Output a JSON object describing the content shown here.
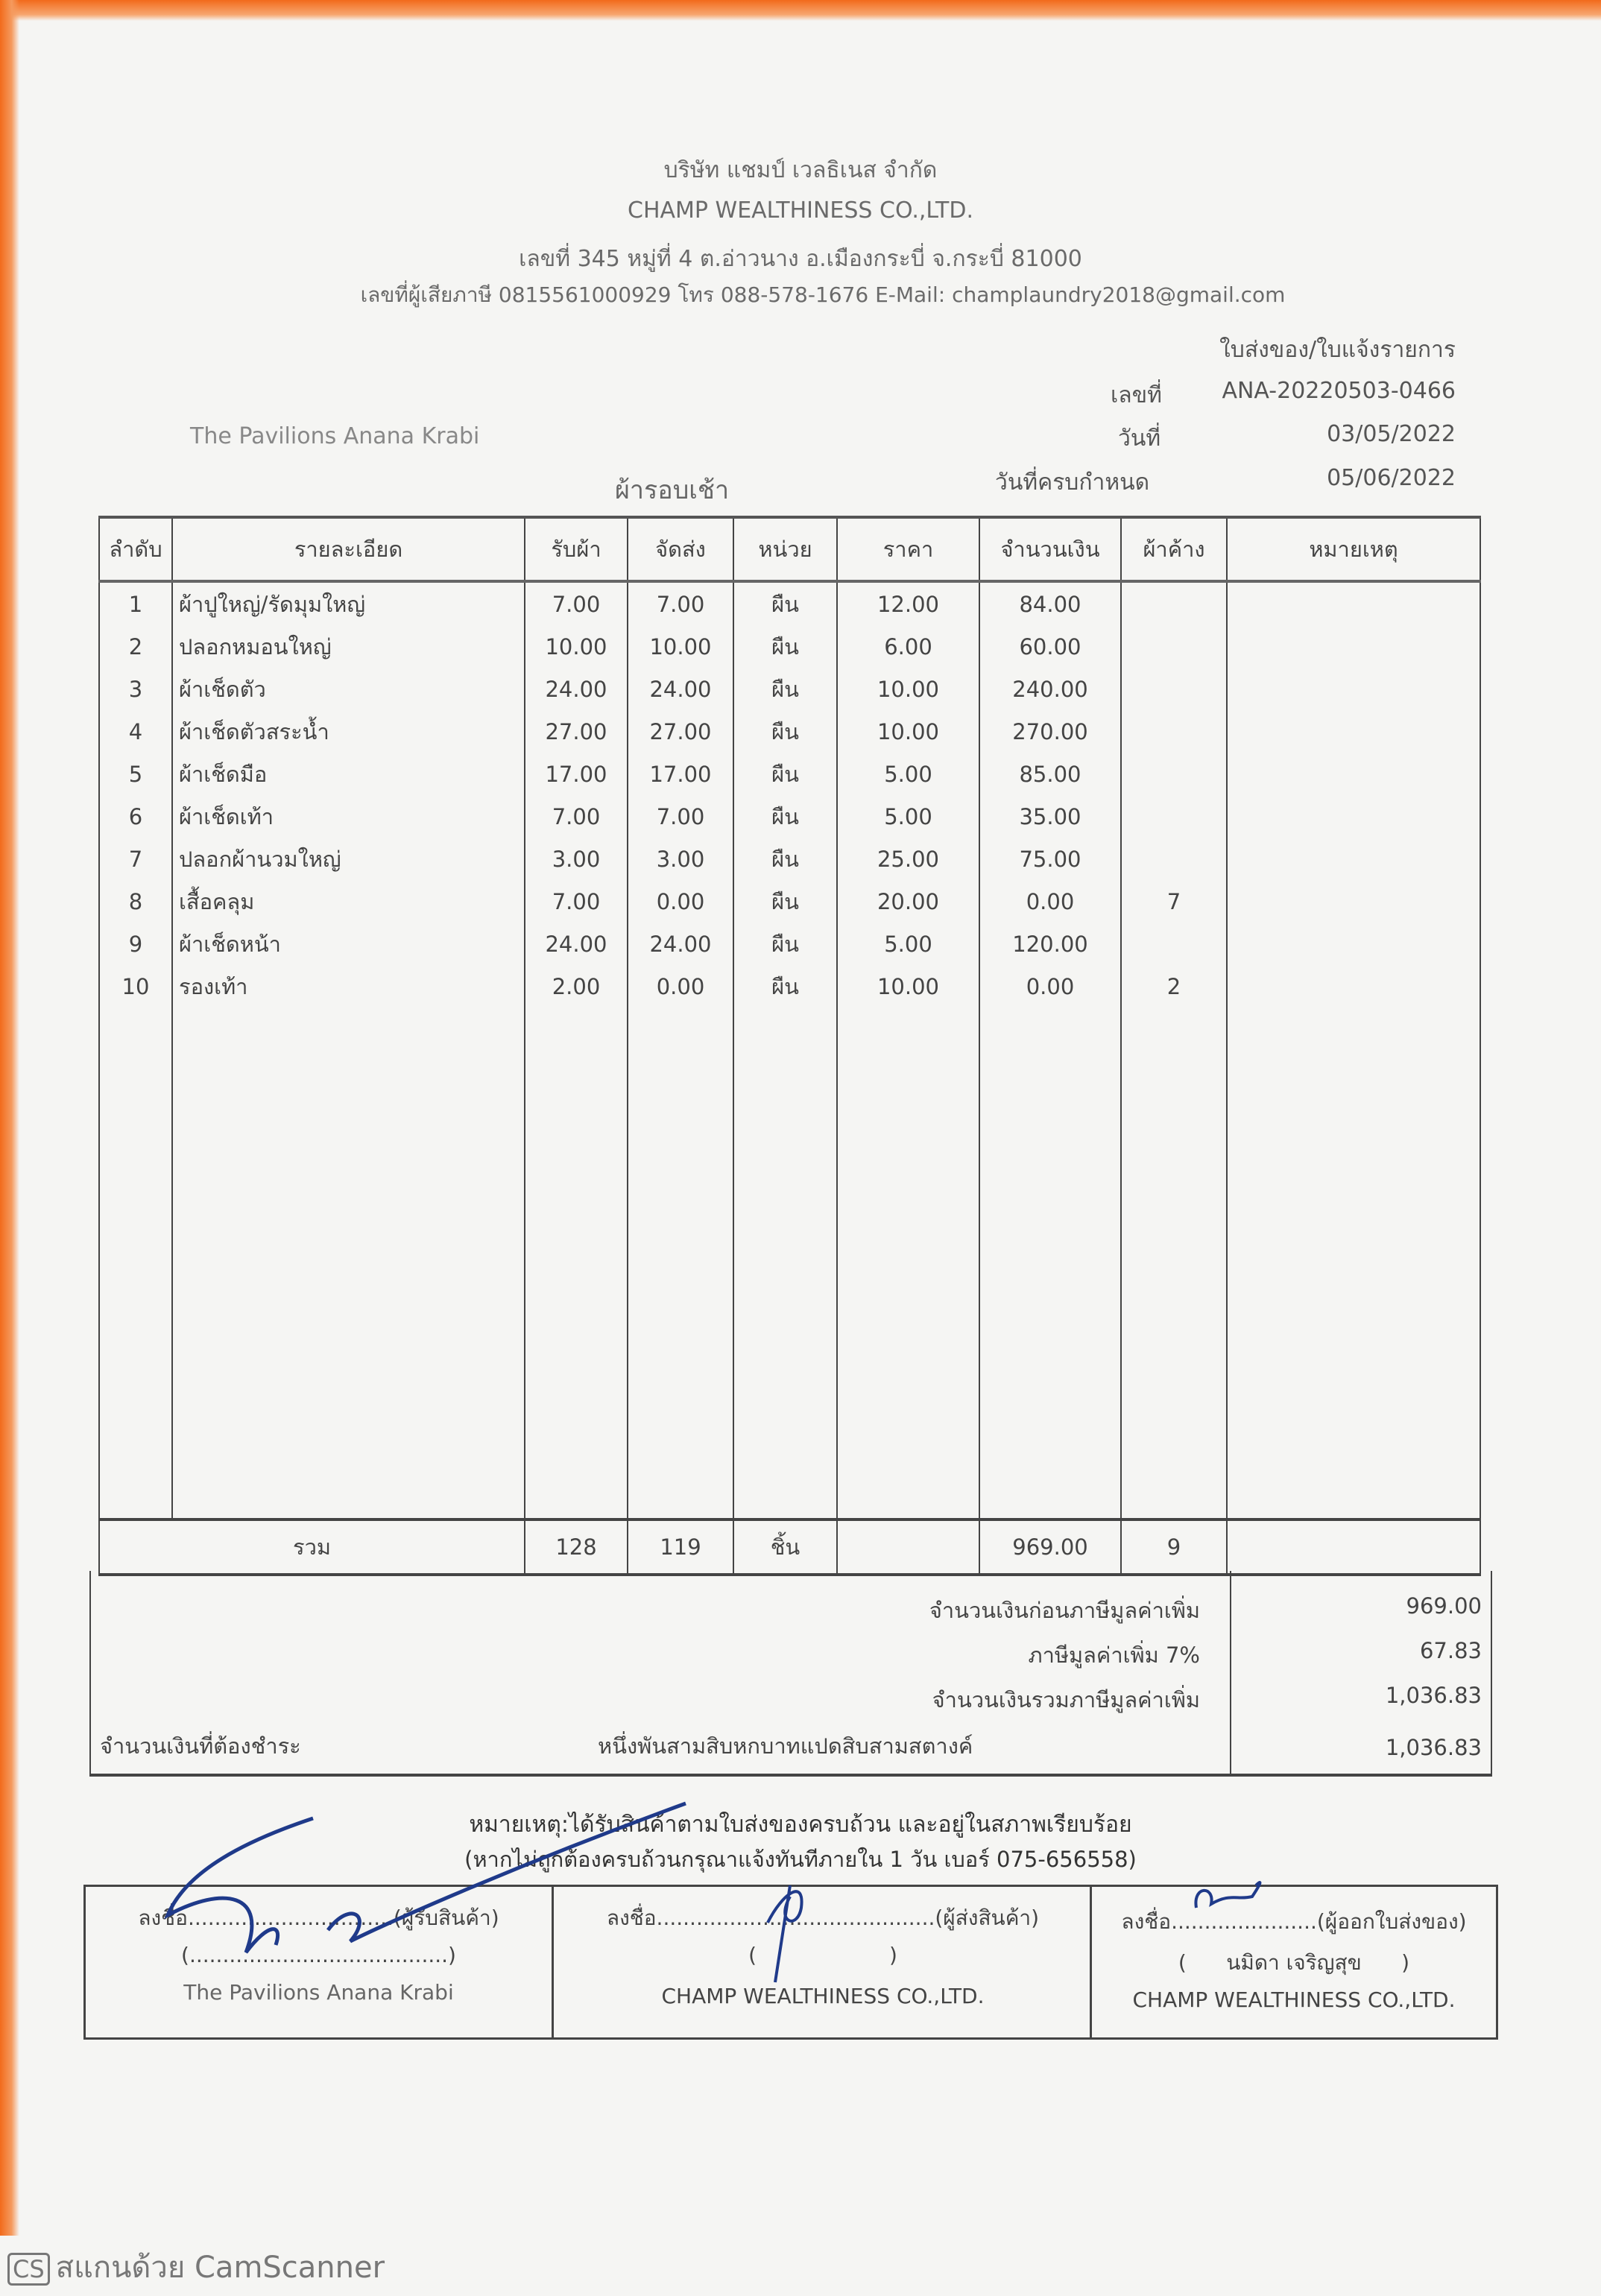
{
  "company": {
    "name_th": "บริษัท แชมป์ เวลธิเนส จำกัด",
    "name_en": "CHAMP WEALTHINESS CO.,LTD.",
    "address": "เลขที่ 345 หมู่ที่ 4 ต.อ่าวนาง อ.เมืองกระบี่ จ.กระบี่ 81000",
    "contact": "เลขที่ผู้เสียภาษี 0815561000929 โทร 088-578-1676 E-Mail: champlaundry2018@gmail.com"
  },
  "doc": {
    "title": "ใบส่งของ/ใบแจ้งรายการ",
    "number_label": "เลขที่",
    "number": "ANA-20220503-0466",
    "date_label": "วันที่",
    "date": "03/05/2022",
    "due_label": "วันที่ครบกำหนด",
    "due": "05/06/2022",
    "customer": "The Pavilions Anana Krabi",
    "round": "ผ้ารอบเช้า"
  },
  "table": {
    "headers": [
      "ลำดับ",
      "รายละเอียด",
      "รับผ้า",
      "จัดส่ง",
      "หน่วย",
      "ราคา",
      "จำนวนเงิน",
      "ผ้าค้าง",
      "หมายเหตุ"
    ],
    "rows": [
      [
        "1",
        "ผ้าปูใหญ่/รัดมุมใหญ่",
        "7.00",
        "7.00",
        "ผืน",
        "12.00",
        "84.00",
        "",
        ""
      ],
      [
        "2",
        "ปลอกหมอนใหญ่",
        "10.00",
        "10.00",
        "ผืน",
        "6.00",
        "60.00",
        "",
        ""
      ],
      [
        "3",
        "ผ้าเช็ดตัว",
        "24.00",
        "24.00",
        "ผืน",
        "10.00",
        "240.00",
        "",
        ""
      ],
      [
        "4",
        "ผ้าเช็ดตัวสระน้ำ",
        "27.00",
        "27.00",
        "ผืน",
        "10.00",
        "270.00",
        "",
        ""
      ],
      [
        "5",
        "ผ้าเช็ดมือ",
        "17.00",
        "17.00",
        "ผืน",
        "5.00",
        "85.00",
        "",
        ""
      ],
      [
        "6",
        "ผ้าเช็ดเท้า",
        "7.00",
        "7.00",
        "ผืน",
        "5.00",
        "35.00",
        "",
        ""
      ],
      [
        "7",
        "ปลอกผ้านวมใหญ่",
        "3.00",
        "3.00",
        "ผืน",
        "25.00",
        "75.00",
        "",
        ""
      ],
      [
        "8",
        "เสื้อคลุม",
        "7.00",
        "0.00",
        "ผืน",
        "20.00",
        "0.00",
        "7",
        ""
      ],
      [
        "9",
        "ผ้าเช็ดหน้า",
        "24.00",
        "24.00",
        "ผืน",
        "5.00",
        "120.00",
        "",
        ""
      ],
      [
        "10",
        "รองเท้า",
        "2.00",
        "0.00",
        "ผืน",
        "10.00",
        "0.00",
        "2",
        ""
      ]
    ],
    "total": {
      "label": "รวม",
      "received": "128",
      "delivered": "119",
      "unit": "ชิ้น",
      "amount": "969.00",
      "pending": "9"
    }
  },
  "summary": {
    "pre_vat_label": "จำนวนเงินก่อนภาษีมูลค่าเพิ่ม",
    "pre_vat": "969.00",
    "vat_label": "ภาษีมูลค่าเพิ่ม 7%",
    "vat": "67.83",
    "total_vat_label": "จำนวนเงินรวมภาษีมูลค่าเพิ่ม",
    "total_vat": "1,036.83",
    "payable_label": "จำนวนเงินที่ต้องชำระ",
    "payable_words": "หนึ่งพันสามสิบหกบาทแปดสิบสามสตางค์",
    "payable": "1,036.83"
  },
  "note": {
    "line1": "หมายเหตุ:ได้รับสินค้าตามใบส่งของครบถ้วน และอยู่ในสภาพเรียบร้อย",
    "line2": "(หากไม่ถูกต้องครบถ้วนกรุณาแจ้งทันทีภายใน 1 วัน   เบอร์ 075-656558)"
  },
  "signatures": [
    {
      "line": "ลงชื่อ...............................(ผู้รับสินค้า)",
      "name": "(.......................................)",
      "org": "The Pavilions Anana Krabi"
    },
    {
      "line": "ลงชื่อ..........................................(ผู้ส่งสินค้า)",
      "name": "(                    )",
      "org": "CHAMP WEALTHINESS CO.,LTD."
    },
    {
      "line": "ลงชื่อ......................(ผู้ออกใบส่งของ)",
      "name": "(      นมิดา เจริญสุข      )",
      "org": "CHAMP WEALTHINESS CO.,LTD."
    }
  ],
  "watermark": {
    "badge": "CS",
    "text": "สแกนด้วย CamScanner"
  },
  "colors": {
    "scan_edge": "#f26a1b",
    "paper": "#f5f5f3",
    "ink": "#3a3a3a",
    "signature_ink": "#1f3a8a"
  }
}
